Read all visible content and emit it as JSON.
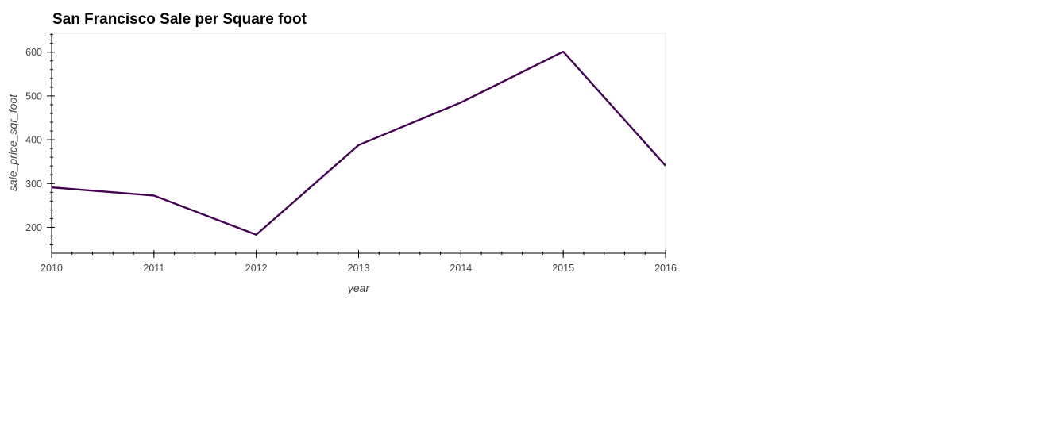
{
  "chart_data": {
    "type": "line",
    "title": "San Francisco Sale per Square foot",
    "xlabel": "year",
    "ylabel": "sale_price_sqr_foot",
    "x": [
      2010,
      2011,
      2012,
      2013,
      2014,
      2015,
      2016
    ],
    "series": [
      {
        "values": [
          291.2,
          272.5,
          183.1,
          387.8,
          485.0,
          601.2,
          341.0
        ],
        "color": "#440154"
      }
    ],
    "xlim": [
      2010,
      2016
    ],
    "ylim": [
      141,
      643
    ],
    "x_ticks": [
      2010,
      2011,
      2012,
      2013,
      2014,
      2015,
      2016
    ],
    "y_ticks": [
      200,
      300,
      400,
      500,
      600
    ],
    "grid": false,
    "legend": "none"
  }
}
